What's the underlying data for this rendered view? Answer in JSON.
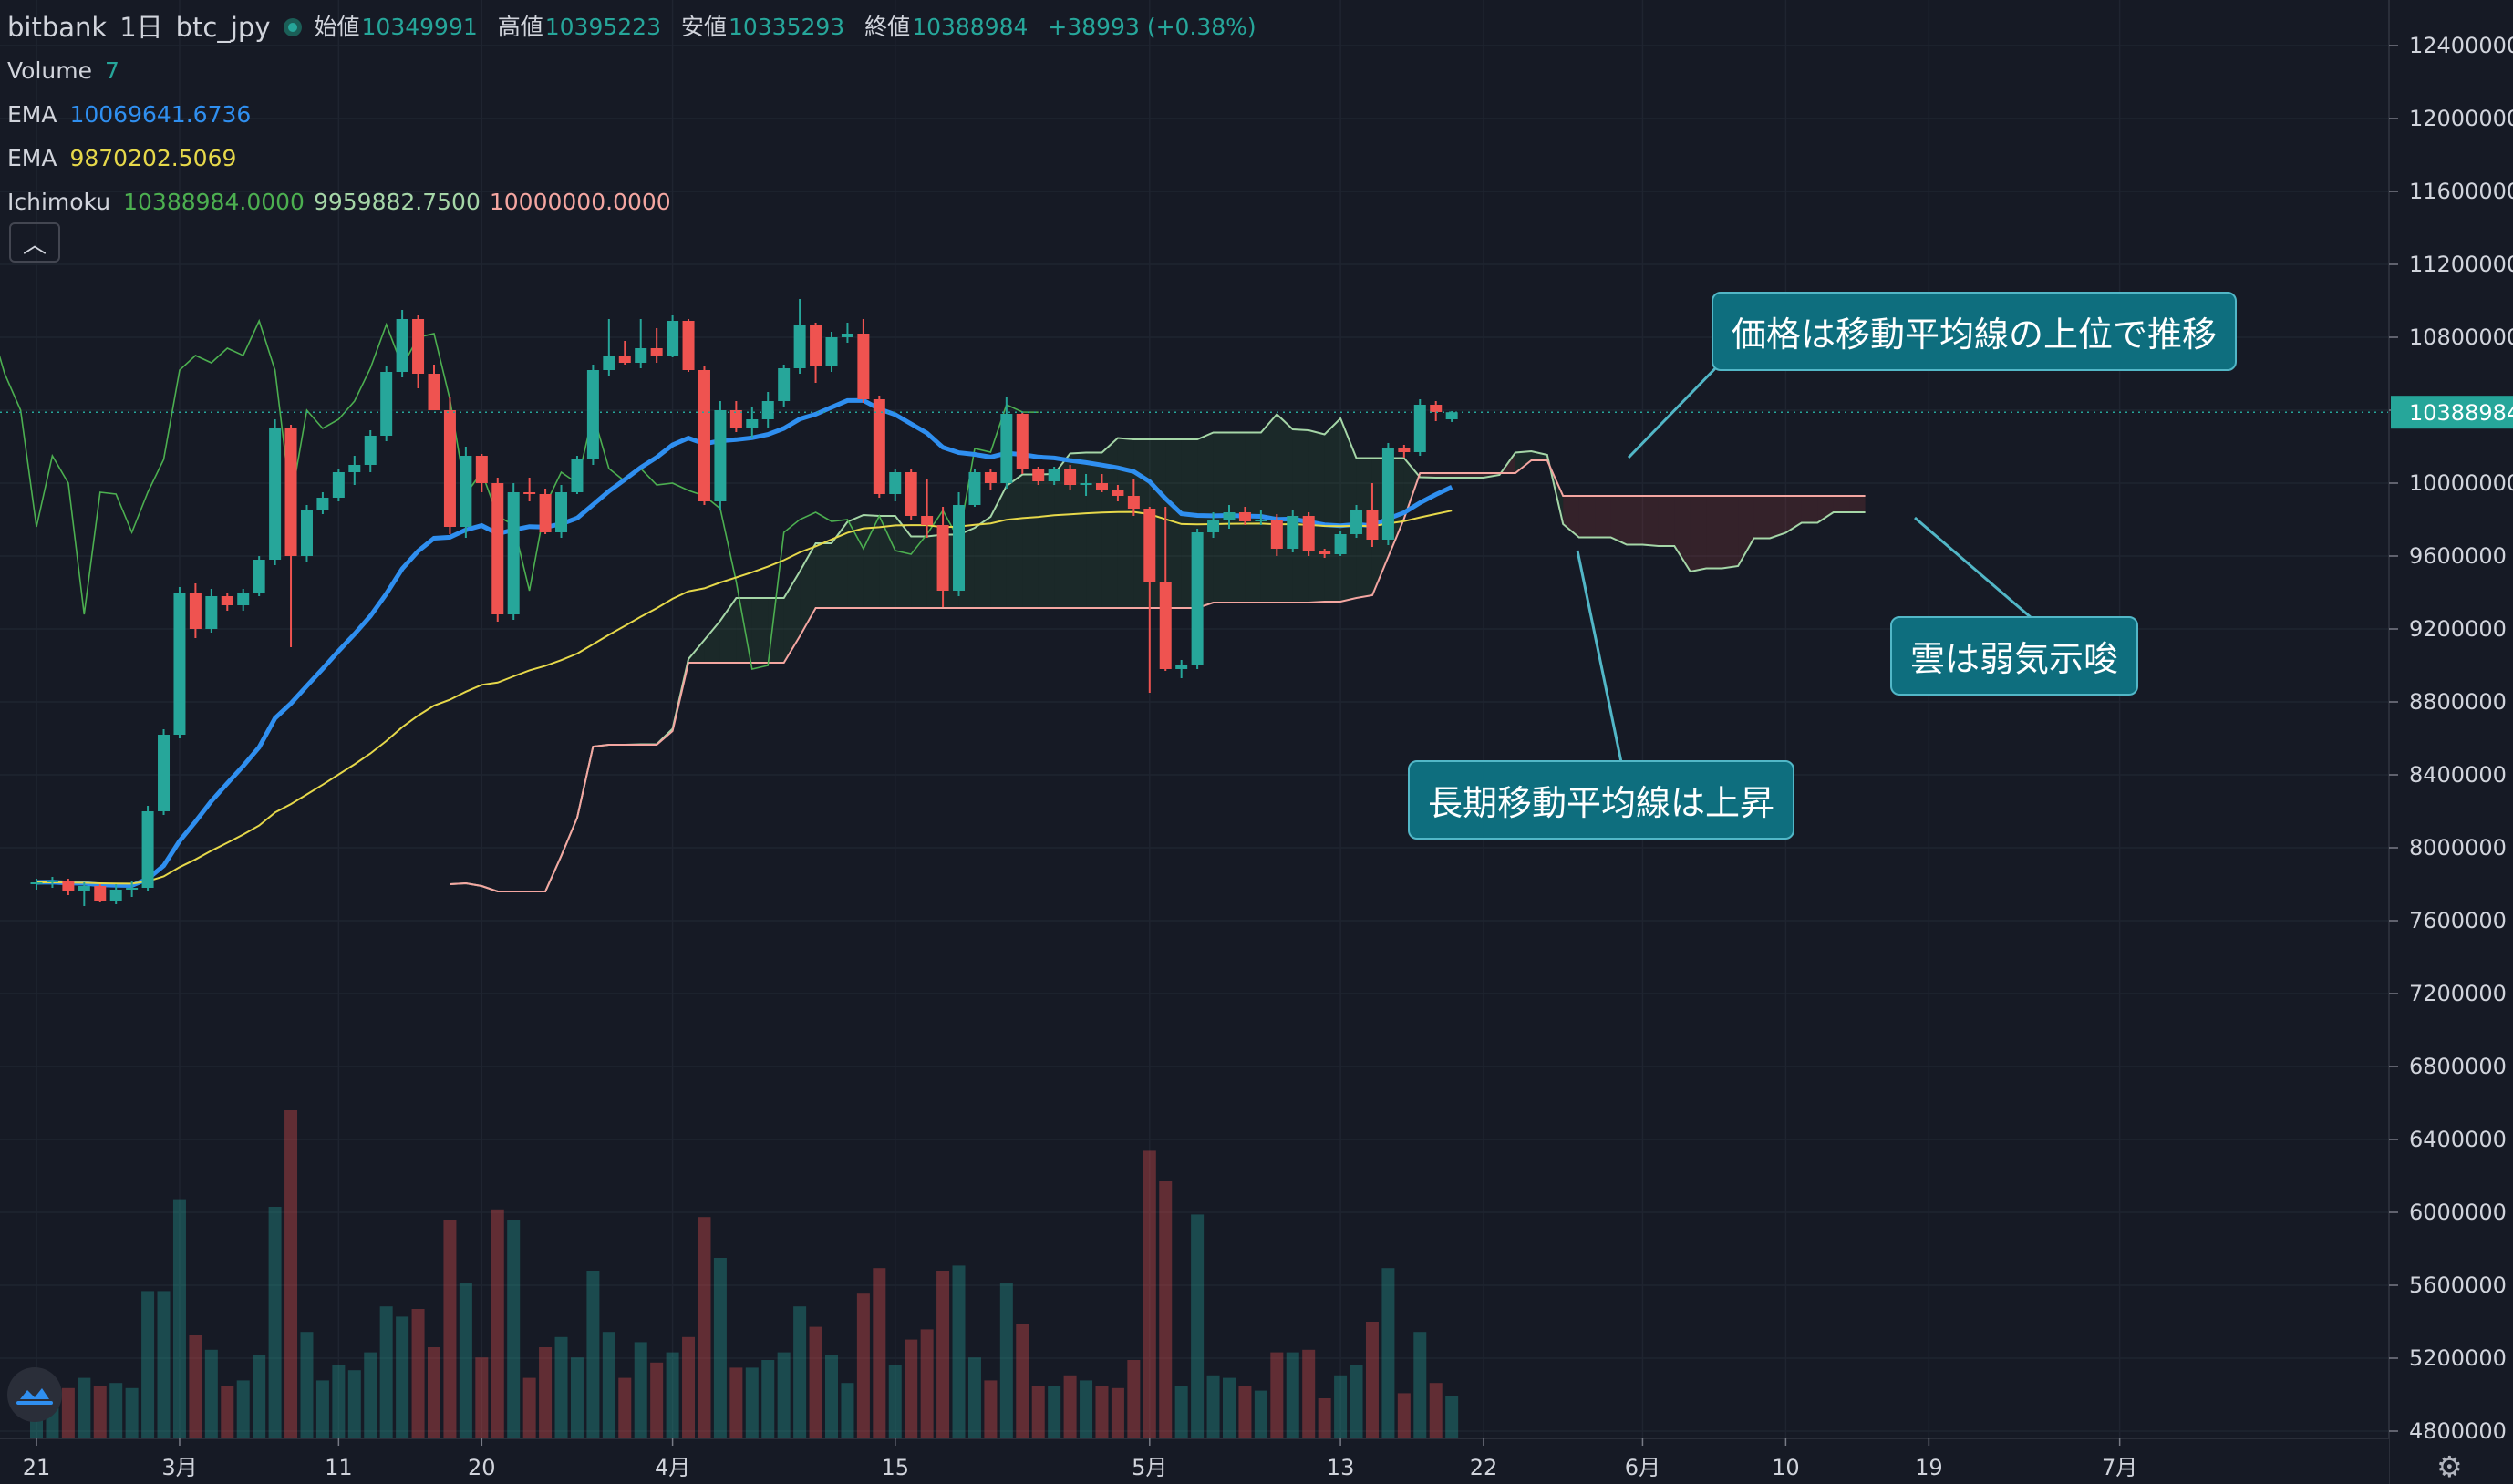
{
  "header": {
    "exchange": "bitbank",
    "interval": "1日",
    "symbol": "btc_jpy",
    "open_label": "始値",
    "open": "10349991",
    "high_label": "高値",
    "high": "10395223",
    "low_label": "安値",
    "low": "10335293",
    "close_label": "終値",
    "close": "10388984",
    "change": "+38993 (+0.38%)"
  },
  "indicators": {
    "volume_label": "Volume",
    "volume_value": "7",
    "ema1_label": "EMA",
    "ema1_value": "10069641.6736",
    "ema2_label": "EMA",
    "ema2_value": "9870202.5069",
    "ichimoku_label": "Ichimoku",
    "ichimoku_v1": "10388984.0000",
    "ichimoku_v2": "9959882.7500",
    "ichimoku_v3": "10000000.0000"
  },
  "annotations": {
    "price_above_ma": "価格は移動平均線の上位で推移",
    "cloud_bearish": "雲は弱気示唆",
    "long_ma_rising": "長期移動平均線は上昇"
  },
  "colors": {
    "up": "#26a69a",
    "down": "#ef5350",
    "ema_fast": "#2f8ff0",
    "ema_slow": "#e6d84a",
    "background": "#161a25"
  },
  "chart_data": {
    "type": "candlestick",
    "yaxis": {
      "ticks": [
        4800000,
        5200000,
        5600000,
        6000000,
        6400000,
        6800000,
        7200000,
        7600000,
        8000000,
        8400000,
        8800000,
        9200000,
        9600000,
        10000000,
        10400000,
        10800000,
        11200000,
        11600000,
        12000000,
        12400000
      ],
      "last_price_label": "10388984"
    },
    "xaxis": {
      "ticks": [
        {
          "label": "21",
          "day": 0
        },
        {
          "label": "3月",
          "day": 9
        },
        {
          "label": "11",
          "day": 19
        },
        {
          "label": "20",
          "day": 28
        },
        {
          "label": "4月",
          "day": 40
        },
        {
          "label": "15",
          "day": 54
        },
        {
          "label": "5月",
          "day": 70
        },
        {
          "label": "13",
          "day": 82
        },
        {
          "label": "22",
          "day": 91
        },
        {
          "label": "6月",
          "day": 101
        },
        {
          "label": "10",
          "day": 110
        },
        {
          "label": "19",
          "day": 119
        },
        {
          "label": "7月",
          "day": 131
        }
      ]
    },
    "candles": [
      [
        7800000,
        7830000,
        7770000,
        7810000
      ],
      [
        7810000,
        7840000,
        7780000,
        7820000
      ],
      [
        7820000,
        7830000,
        7740000,
        7760000
      ],
      [
        7760000,
        7810000,
        7680000,
        7790000
      ],
      [
        7790000,
        7800000,
        7700000,
        7710000
      ],
      [
        7710000,
        7800000,
        7690000,
        7770000
      ],
      [
        7770000,
        7820000,
        7730000,
        7780000
      ],
      [
        7780000,
        8230000,
        7760000,
        8200000
      ],
      [
        8200000,
        8650000,
        8180000,
        8620000
      ],
      [
        8620000,
        9430000,
        8600000,
        9400000
      ],
      [
        9400000,
        9450000,
        9150000,
        9200000
      ],
      [
        9200000,
        9420000,
        9180000,
        9380000
      ],
      [
        9380000,
        9400000,
        9300000,
        9330000
      ],
      [
        9330000,
        9420000,
        9300000,
        9400000
      ],
      [
        9400000,
        9600000,
        9380000,
        9580000
      ],
      [
        9580000,
        10350000,
        9550000,
        10300000
      ],
      [
        10300000,
        10320000,
        9100000,
        9600000
      ],
      [
        9600000,
        9880000,
        9570000,
        9850000
      ],
      [
        9850000,
        9950000,
        9830000,
        9920000
      ],
      [
        9920000,
        10080000,
        9900000,
        10060000
      ],
      [
        10060000,
        10150000,
        9990000,
        10100000
      ],
      [
        10100000,
        10290000,
        10060000,
        10260000
      ],
      [
        10260000,
        10640000,
        10230000,
        10610000
      ],
      [
        10610000,
        10950000,
        10580000,
        10900000
      ],
      [
        10900000,
        10920000,
        10520000,
        10600000
      ],
      [
        10600000,
        10650000,
        10400000,
        10400000
      ],
      [
        10400000,
        10470000,
        9720000,
        9760000
      ],
      [
        9760000,
        10200000,
        9700000,
        10150000
      ],
      [
        10150000,
        10160000,
        9950000,
        10000000
      ],
      [
        10000000,
        10030000,
        9240000,
        9280000
      ],
      [
        9280000,
        10000000,
        9250000,
        9950000
      ],
      [
        9950000,
        10030000,
        9900000,
        9940000
      ],
      [
        9940000,
        9970000,
        9720000,
        9730000
      ],
      [
        9730000,
        9990000,
        9700000,
        9950000
      ],
      [
        9950000,
        10150000,
        9940000,
        10130000
      ],
      [
        10130000,
        10650000,
        10100000,
        10620000
      ],
      [
        10620000,
        10900000,
        10590000,
        10700000
      ],
      [
        10700000,
        10780000,
        10650000,
        10660000
      ],
      [
        10660000,
        10900000,
        10630000,
        10740000
      ],
      [
        10740000,
        10850000,
        10660000,
        10700000
      ],
      [
        10700000,
        10920000,
        10690000,
        10890000
      ],
      [
        10890000,
        10900000,
        10610000,
        10620000
      ],
      [
        10620000,
        10640000,
        9880000,
        9900000
      ],
      [
        9900000,
        10450000,
        9850000,
        10400000
      ],
      [
        10400000,
        10450000,
        10280000,
        10300000
      ],
      [
        10300000,
        10420000,
        10250000,
        10350000
      ],
      [
        10350000,
        10500000,
        10300000,
        10450000
      ],
      [
        10450000,
        10650000,
        10420000,
        10630000
      ],
      [
        10630000,
        11010000,
        10600000,
        10870000
      ],
      [
        10870000,
        10880000,
        10550000,
        10640000
      ],
      [
        10640000,
        10830000,
        10610000,
        10800000
      ],
      [
        10800000,
        10880000,
        10770000,
        10820000
      ],
      [
        10820000,
        10900000,
        10440000,
        10460000
      ],
      [
        10460000,
        10480000,
        9920000,
        9940000
      ],
      [
        9940000,
        10080000,
        9900000,
        10060000
      ],
      [
        10060000,
        10080000,
        9800000,
        9820000
      ],
      [
        9820000,
        10020000,
        9700000,
        9770000
      ],
      [
        9770000,
        9870000,
        9320000,
        9410000
      ],
      [
        9410000,
        9950000,
        9380000,
        9880000
      ],
      [
        9880000,
        10080000,
        9870000,
        10060000
      ],
      [
        10060000,
        10080000,
        9960000,
        10000000
      ],
      [
        10000000,
        10470000,
        9970000,
        10380000
      ],
      [
        10380000,
        10390000,
        10050000,
        10080000
      ],
      [
        10080000,
        10090000,
        9990000,
        10010000
      ],
      [
        10010000,
        10090000,
        9990000,
        10080000
      ],
      [
        10080000,
        10100000,
        9960000,
        9990000
      ],
      [
        9990000,
        10050000,
        9930000,
        10000000
      ],
      [
        10000000,
        10050000,
        9950000,
        9960000
      ],
      [
        9960000,
        9990000,
        9900000,
        9930000
      ],
      [
        9930000,
        10020000,
        9820000,
        9860000
      ],
      [
        9860000,
        9870000,
        8850000,
        9460000
      ],
      [
        9460000,
        9870000,
        8970000,
        8980000
      ],
      [
        8980000,
        9030000,
        8930000,
        9000000
      ],
      [
        9000000,
        9750000,
        8980000,
        9730000
      ],
      [
        9730000,
        9840000,
        9700000,
        9800000
      ],
      [
        9800000,
        9880000,
        9750000,
        9840000
      ],
      [
        9840000,
        9870000,
        9770000,
        9790000
      ],
      [
        9790000,
        9850000,
        9770000,
        9800000
      ],
      [
        9800000,
        9830000,
        9600000,
        9640000
      ],
      [
        9640000,
        9850000,
        9620000,
        9820000
      ],
      [
        9820000,
        9840000,
        9600000,
        9630000
      ],
      [
        9630000,
        9640000,
        9590000,
        9610000
      ],
      [
        9610000,
        9740000,
        9600000,
        9720000
      ],
      [
        9720000,
        9880000,
        9700000,
        9850000
      ],
      [
        9850000,
        10000000,
        9650000,
        9690000
      ],
      [
        9690000,
        10220000,
        9660000,
        10190000
      ],
      [
        10190000,
        10210000,
        10140000,
        10170000
      ],
      [
        10170000,
        10460000,
        10150000,
        10430000
      ],
      [
        10430000,
        10450000,
        10340000,
        10390000
      ],
      [
        10349991,
        10395223,
        10335293,
        10388984
      ]
    ]
  }
}
